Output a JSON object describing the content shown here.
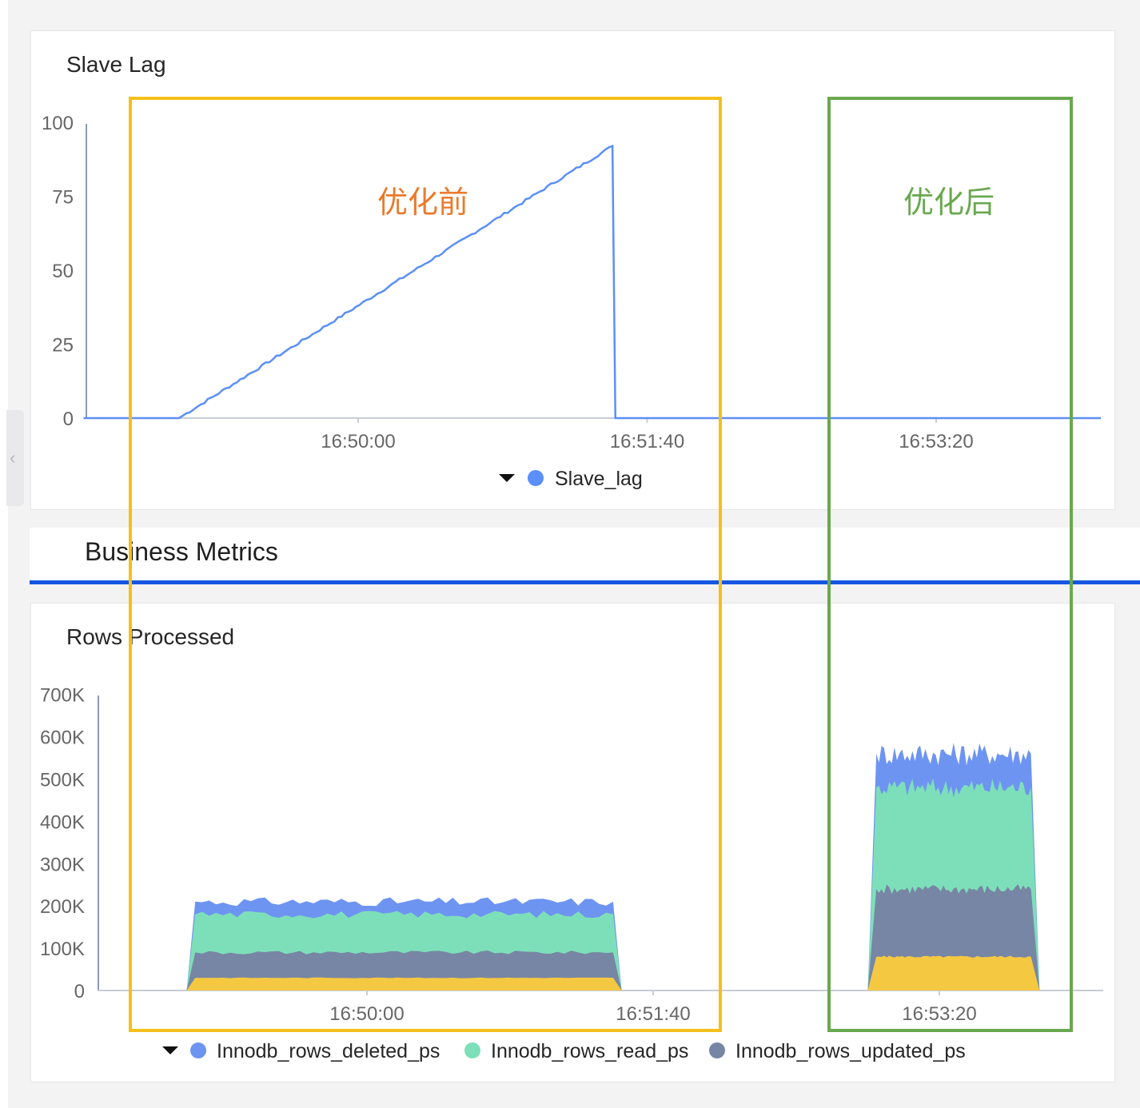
{
  "section": {
    "title": "Business Metrics",
    "accent_color": "#1456e0"
  },
  "annotations": [
    {
      "label": "优化前",
      "color": "#f5bf1a",
      "text_color": "#ea7a2c"
    },
    {
      "label": "优化后",
      "color": "#6aa84f",
      "text_color": "#6aa84f"
    }
  ],
  "chart_data": [
    {
      "type": "line",
      "title": "Slave Lag",
      "xlabel": "",
      "ylabel": "",
      "x_ticks": [
        "16:50:00",
        "16:51:40",
        "16:53:20"
      ],
      "x_range_seconds_rel_16_50_00": [
        -95,
        257
      ],
      "ylim": [
        0,
        100
      ],
      "y_ticks": [
        0,
        25,
        50,
        75,
        100
      ],
      "grid": false,
      "legend_position": "bottom",
      "series": [
        {
          "name": "Slave_lag",
          "color": "#5b8ff9",
          "x_seconds_rel_16_50_00": [
            -95,
            -62,
            88,
            89,
            257
          ],
          "values": [
            0,
            0,
            92,
            0,
            0
          ]
        }
      ]
    },
    {
      "type": "area",
      "stacked": true,
      "title": "Rows Processed",
      "xlabel": "",
      "ylabel": "",
      "x_ticks": [
        "16:50:00",
        "16:51:40",
        "16:53:20"
      ],
      "ylim": [
        0,
        700000
      ],
      "y_ticks": [
        "0",
        "100K",
        "200K",
        "300K",
        "400K",
        "500K",
        "600K",
        "700K"
      ],
      "grid": false,
      "legend_position": "bottom",
      "segments": [
        {
          "x_seconds_rel_16_50_00": [
            -63,
            89
          ],
          "stack_tops": {
            "yellow": 30000,
            "updated": 90000,
            "read": 180000,
            "deleted": 210000
          }
        },
        {
          "x_seconds_rel_16_50_00": [
            175,
            235
          ],
          "stack_tops": {
            "yellow": 80000,
            "updated": 240000,
            "read": 480000,
            "deleted": 560000
          }
        }
      ],
      "series": [
        {
          "name": "Innodb_rows_deleted_ps",
          "color": "#6e94f2"
        },
        {
          "name": "Innodb_rows_read_ps",
          "color": "#7ddfb9"
        },
        {
          "name": "Innodb_rows_updated_ps",
          "color": "#7786a4"
        },
        {
          "color": "#f5c842"
        }
      ]
    }
  ]
}
